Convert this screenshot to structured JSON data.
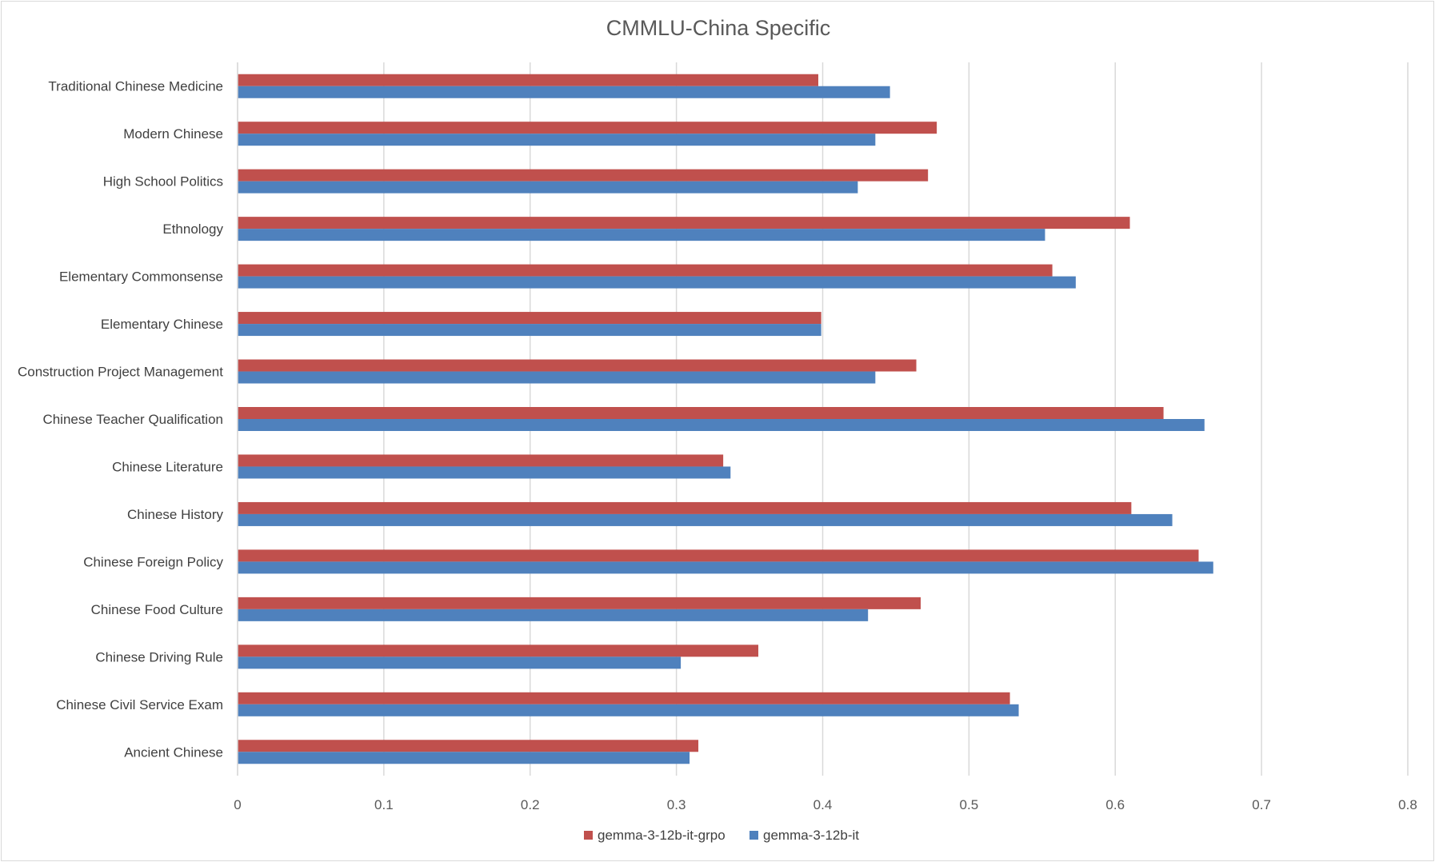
{
  "chart_data": {
    "type": "bar",
    "orientation": "horizontal",
    "title": "CMMLU-China Specific",
    "xlabel": "",
    "ylabel": "",
    "xlim": [
      0,
      0.8
    ],
    "ticks": [
      "0",
      "0.1",
      "0.2",
      "0.3",
      "0.4",
      "0.5",
      "0.6",
      "0.7",
      "0.8"
    ],
    "grid": true,
    "legend_position": "bottom",
    "categories": [
      "Traditional Chinese Medicine",
      "Modern Chinese",
      "High School Politics",
      "Ethnology",
      "Elementary Commonsense",
      "Elementary Chinese",
      "Construction Project Management",
      "Chinese Teacher Qualification",
      "Chinese Literature",
      "Chinese History",
      "Chinese Foreign Policy",
      "Chinese Food Culture",
      "Chinese Driving Rule",
      "Chinese Civil Service Exam",
      "Ancient Chinese"
    ],
    "series": [
      {
        "name": "gemma-3-12b-it-grpo",
        "color": "#c0504d",
        "values": [
          0.397,
          0.478,
          0.472,
          0.61,
          0.557,
          0.399,
          0.464,
          0.633,
          0.332,
          0.611,
          0.657,
          0.467,
          0.356,
          0.528,
          0.315
        ]
      },
      {
        "name": "gemma-3-12b-it",
        "color": "#4f81bd",
        "values": [
          0.446,
          0.436,
          0.424,
          0.552,
          0.573,
          0.399,
          0.436,
          0.661,
          0.337,
          0.639,
          0.667,
          0.431,
          0.303,
          0.534,
          0.309
        ]
      }
    ]
  }
}
